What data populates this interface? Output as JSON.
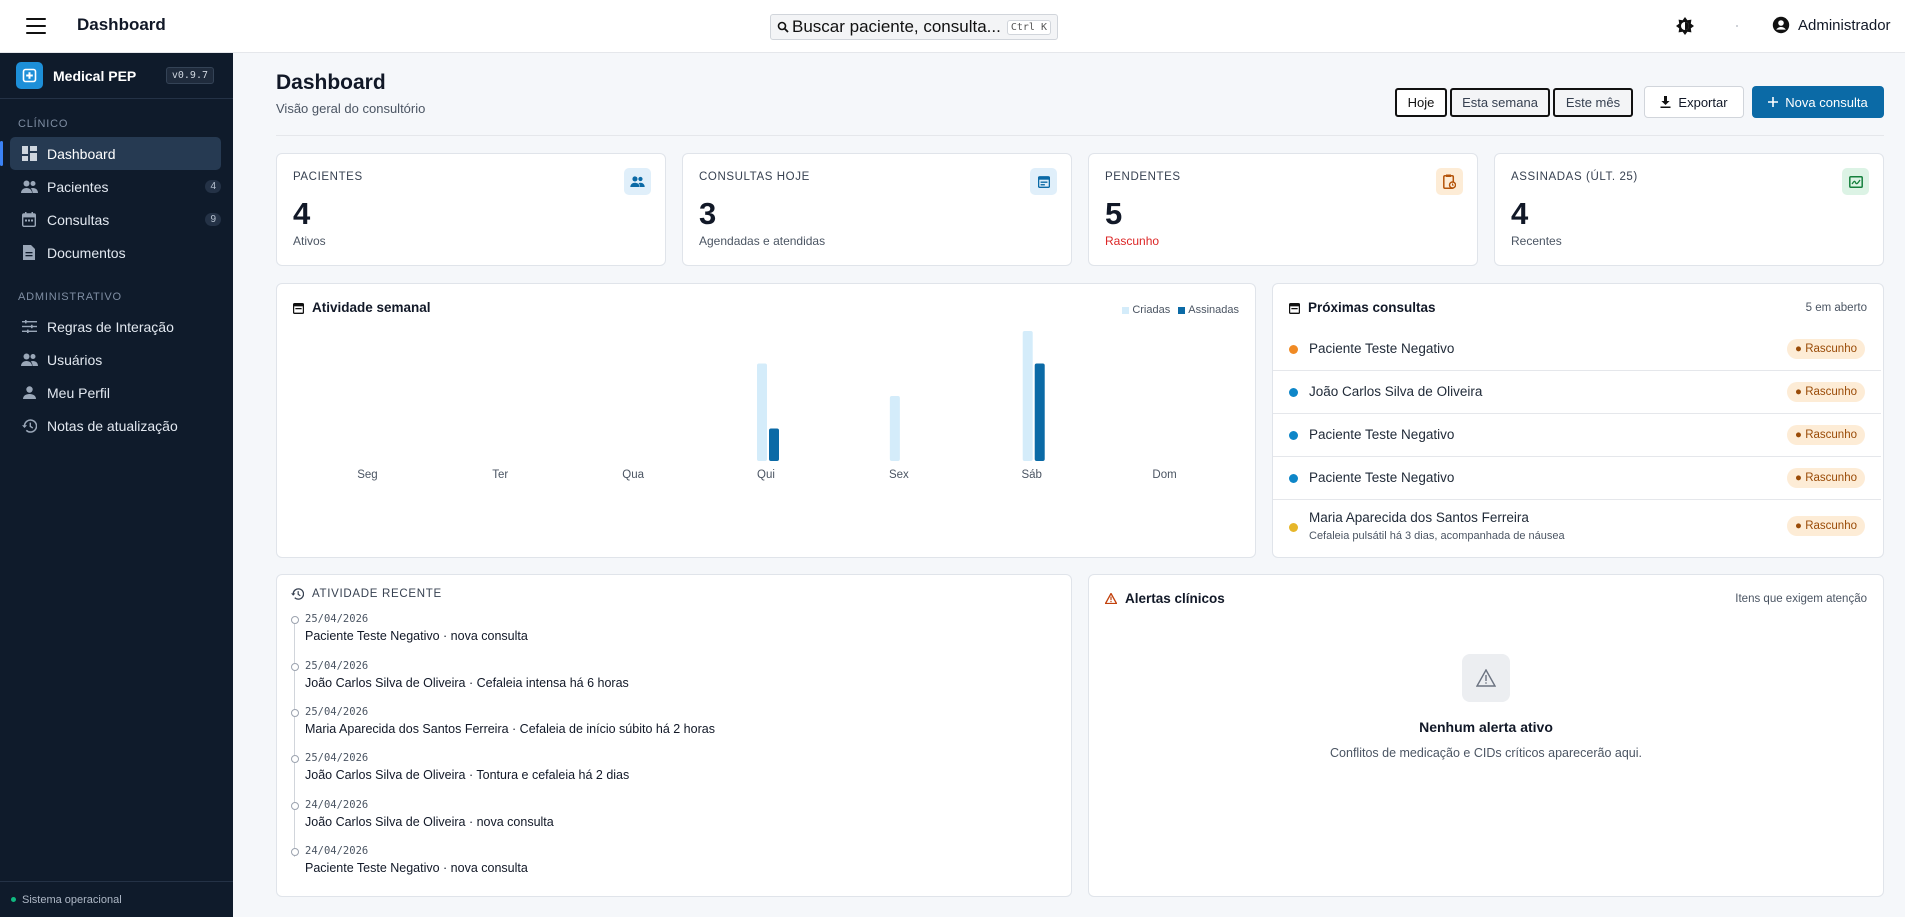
{
  "header": {
    "title": "Dashboard",
    "search_placeholder": "Buscar paciente, consulta...",
    "search_shortcut": "Ctrl K",
    "user": "Administrador"
  },
  "sidebar": {
    "brand": "Medical PEP",
    "version": "v0.9.7",
    "sections": [
      {
        "label": "CLÍNICO",
        "items": [
          {
            "label": "Dashboard",
            "count": ""
          },
          {
            "label": "Pacientes",
            "count": "4"
          },
          {
            "label": "Consultas",
            "count": "9"
          },
          {
            "label": "Documentos",
            "count": ""
          }
        ]
      },
      {
        "label": "ADMINISTRATIVO",
        "items": [
          {
            "label": "Regras de Interação"
          },
          {
            "label": "Usuários"
          },
          {
            "label": "Meu Perfil"
          },
          {
            "label": "Notas de atualização"
          }
        ]
      }
    ],
    "status": "Sistema operacional"
  },
  "page": {
    "title": "Dashboard",
    "subtitle": "Visão geral do consultório",
    "periods": [
      "Hoje",
      "Esta semana",
      "Este mês"
    ],
    "active_period": "Hoje",
    "export_label": "Exportar",
    "new_label": "Nova consulta"
  },
  "stats": [
    {
      "label": "PACIENTES",
      "value": "4",
      "sub": "Ativos",
      "icon": "people-icon",
      "color": "#e0effa"
    },
    {
      "label": "CONSULTAS HOJE",
      "value": "3",
      "sub": "Agendadas e atendidas",
      "icon": "calendar-icon",
      "color": "#e0effa"
    },
    {
      "label": "PENDENTES",
      "value": "5",
      "sub": "Rascunho",
      "icon": "clipboard-clock-icon",
      "color": "#fdecd6",
      "sub_color": "#dc2626"
    },
    {
      "label": "ASSINADAS (ÚLT. 25)",
      "value": "4",
      "sub": "Recentes",
      "icon": "signature-icon",
      "color": "#dcf3e5"
    }
  ],
  "chart_title": "Atividade semanal",
  "chart_data": {
    "type": "bar",
    "categories": [
      "Seg",
      "Ter",
      "Qua",
      "Qui",
      "Sex",
      "Sáb",
      "Dom"
    ],
    "series": [
      {
        "name": "Criadas",
        "values": [
          0,
          0,
          0,
          3,
          2,
          4,
          0
        ],
        "color": "#d4ecfa"
      },
      {
        "name": "Assinadas",
        "values": [
          0,
          0,
          0,
          1,
          0,
          3,
          0
        ],
        "color": "#0b6aa6"
      }
    ],
    "ylim": [
      0,
      4
    ],
    "grid": false,
    "legend": "top-right"
  },
  "appointments": {
    "title": "Próximas consultas",
    "count_label": "5 em aberto",
    "items": [
      {
        "name": "Paciente Teste Negativo",
        "status": "Rascunho",
        "dot": "#f08a24",
        "note": ""
      },
      {
        "name": "João Carlos Silva de Oliveira",
        "status": "Rascunho",
        "dot": "#0e86c8",
        "note": ""
      },
      {
        "name": "Paciente Teste Negativo",
        "status": "Rascunho",
        "dot": "#0e86c8",
        "note": ""
      },
      {
        "name": "Paciente Teste Negativo",
        "status": "Rascunho",
        "dot": "#0e86c8",
        "note": ""
      },
      {
        "name": "Maria Aparecida dos Santos Ferreira",
        "status": "Rascunho",
        "dot": "#e6b62a",
        "note": "Cefaleia pulsátil há 3 dias, acompanhada de náusea"
      }
    ]
  },
  "activity": {
    "title": "ATIVIDADE RECENTE",
    "items": [
      {
        "date": "25/04/2026",
        "text": "Paciente Teste Negativo · nova consulta"
      },
      {
        "date": "25/04/2026",
        "text": "João Carlos Silva de Oliveira · Cefaleia intensa há 6 horas"
      },
      {
        "date": "25/04/2026",
        "text": "Maria Aparecida dos Santos Ferreira · Cefaleia de início súbito há 2 horas"
      },
      {
        "date": "25/04/2026",
        "text": "João Carlos Silva de Oliveira · Tontura e cefaleia há 2 dias"
      },
      {
        "date": "24/04/2026",
        "text": "João Carlos Silva de Oliveira · nova consulta"
      },
      {
        "date": "24/04/2026",
        "text": "Paciente Teste Negativo · nova consulta"
      }
    ]
  },
  "alerts": {
    "title": "Alertas clínicos",
    "hint": "Itens que exigem atenção",
    "empty_title": "Nenhum alerta ativo",
    "empty_sub": "Conflitos de medicação e CIDs críticos aparecerão aqui."
  }
}
